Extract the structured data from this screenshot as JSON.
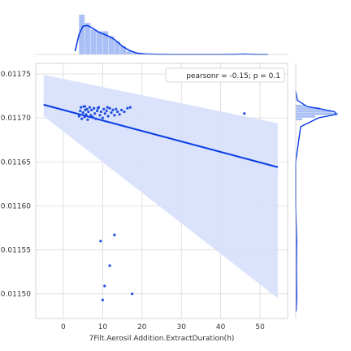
{
  "chart_data": {
    "type": "scatter",
    "xlabel": "7Filt.Aerosil Addition.ExtractDuration(h)",
    "ylabel": "",
    "xlim": [
      -7,
      57
    ],
    "ylim": [
      0.011472,
      0.011762
    ],
    "x_ticks": [
      0,
      10,
      20,
      30,
      40,
      50
    ],
    "y_ticks": [
      0.0115,
      0.01155,
      0.0116,
      0.01165,
      0.0117,
      0.01175
    ],
    "grid": true,
    "legend": {
      "text": "pearsonr = -0.15; p = 0.1",
      "placement": "top-right"
    },
    "colors": {
      "points": "#1f4fe0",
      "regression_line": "#0b3de8",
      "confidence_band": "#d6e0fb",
      "histogram": "#a9bff5",
      "kde": "#0b3de8",
      "grid": "#d9d9d9"
    },
    "regression": {
      "x": [
        -5,
        54.5
      ],
      "y": [
        0.011715,
        0.011644
      ],
      "ci_upper": [
        0.011749,
        0.011694
      ],
      "ci_lower": [
        0.011702,
        0.011495
      ]
    },
    "points": [
      [
        4.0,
        0.011702
      ],
      [
        4.3,
        0.011708
      ],
      [
        4.5,
        0.011712
      ],
      [
        4.7,
        0.011699
      ],
      [
        5.0,
        0.011706
      ],
      [
        5.2,
        0.011713
      ],
      [
        5.4,
        0.011701
      ],
      [
        5.6,
        0.011709
      ],
      [
        5.8,
        0.011704
      ],
      [
        6.0,
        0.01171
      ],
      [
        6.2,
        0.011698
      ],
      [
        6.4,
        0.011707
      ],
      [
        6.7,
        0.011712
      ],
      [
        7.0,
        0.011703
      ],
      [
        7.2,
        0.011709
      ],
      [
        7.5,
        0.011701
      ],
      [
        7.8,
        0.011711
      ],
      [
        8.0,
        0.011705
      ],
      [
        8.3,
        0.011699
      ],
      [
        8.6,
        0.011708
      ],
      [
        9.0,
        0.011712
      ],
      [
        9.3,
        0.011703
      ],
      [
        9.6,
        0.011707
      ],
      [
        10.0,
        0.0117
      ],
      [
        10.3,
        0.01171
      ],
      [
        10.6,
        0.011705
      ],
      [
        11.0,
        0.011708
      ],
      [
        11.4,
        0.011702
      ],
      [
        11.8,
        0.011711
      ],
      [
        12.2,
        0.011706
      ],
      [
        12.6,
        0.011709
      ],
      [
        13.0,
        0.011703
      ],
      [
        13.4,
        0.01171
      ],
      [
        13.8,
        0.011707
      ],
      [
        14.3,
        0.011704
      ],
      [
        14.8,
        0.011709
      ],
      [
        15.5,
        0.011707
      ],
      [
        16.3,
        0.011711
      ],
      [
        17.0,
        0.011712
      ],
      [
        5.5,
        0.011713
      ],
      [
        8.8,
        0.011711
      ],
      [
        11.2,
        0.011712
      ],
      [
        46.0,
        0.011705
      ],
      [
        13.0,
        0.011567
      ],
      [
        9.5,
        0.01156
      ],
      [
        11.8,
        0.011532
      ],
      [
        10.5,
        0.011509
      ],
      [
        17.5,
        0.0115
      ],
      [
        10.0,
        0.011493
      ]
    ],
    "marginal_x": {
      "bin_width": 1.5,
      "bins": [
        [
          4.0,
          0.24
        ],
        [
          5.5,
          0.19
        ],
        [
          7.0,
          0.15
        ],
        [
          8.5,
          0.14
        ],
        [
          10.0,
          0.14
        ],
        [
          11.5,
          0.11
        ],
        [
          13.0,
          0.08
        ],
        [
          14.5,
          0.05
        ],
        [
          16.0,
          0.02
        ],
        [
          17.5,
          0.01
        ],
        [
          45.5,
          0.004
        ]
      ],
      "kde_x": [
        3,
        4,
        5,
        6,
        7,
        8,
        9,
        10,
        11,
        12,
        13,
        14,
        15,
        16,
        17,
        18,
        19,
        21,
        24,
        28,
        35,
        40,
        44,
        46,
        48,
        50,
        52
      ],
      "kde_y": [
        0.02,
        0.12,
        0.17,
        0.175,
        0.165,
        0.15,
        0.135,
        0.125,
        0.115,
        0.105,
        0.09,
        0.07,
        0.05,
        0.035,
        0.022,
        0.013,
        0.007,
        0.003,
        0.001,
        0.0,
        0.0,
        0.0,
        0.001,
        0.002,
        0.001,
        0.0,
        0.0
      ],
      "ylim": [
        0,
        0.25
      ]
    },
    "marginal_y": {
      "bins": [
        [
          0.011703,
          0.011706,
          2.6
        ],
        [
          0.011706,
          0.011709,
          2.2
        ],
        [
          0.011709,
          0.011712,
          1.5
        ],
        [
          0.011712,
          0.011715,
          0.6
        ],
        [
          0.0117,
          0.011703,
          1.2
        ],
        [
          0.011697,
          0.0117,
          0.4
        ]
      ],
      "kde_y": [
        0.01148,
        0.01149,
        0.0115,
        0.01151,
        0.01153,
        0.01155,
        0.01156,
        0.01157,
        0.0116,
        0.01165,
        0.01169,
        0.0117,
        0.011704,
        0.011707,
        0.01171,
        0.011713,
        0.01172,
        0.01173
      ],
      "kde_x": [
        0.02,
        0.05,
        0.06,
        0.05,
        0.04,
        0.05,
        0.06,
        0.04,
        0.0,
        0.0,
        0.3,
        1.4,
        2.5,
        2.4,
        1.6,
        0.7,
        0.1,
        0.0
      ],
      "xlim": [
        0,
        2.8
      ]
    }
  }
}
